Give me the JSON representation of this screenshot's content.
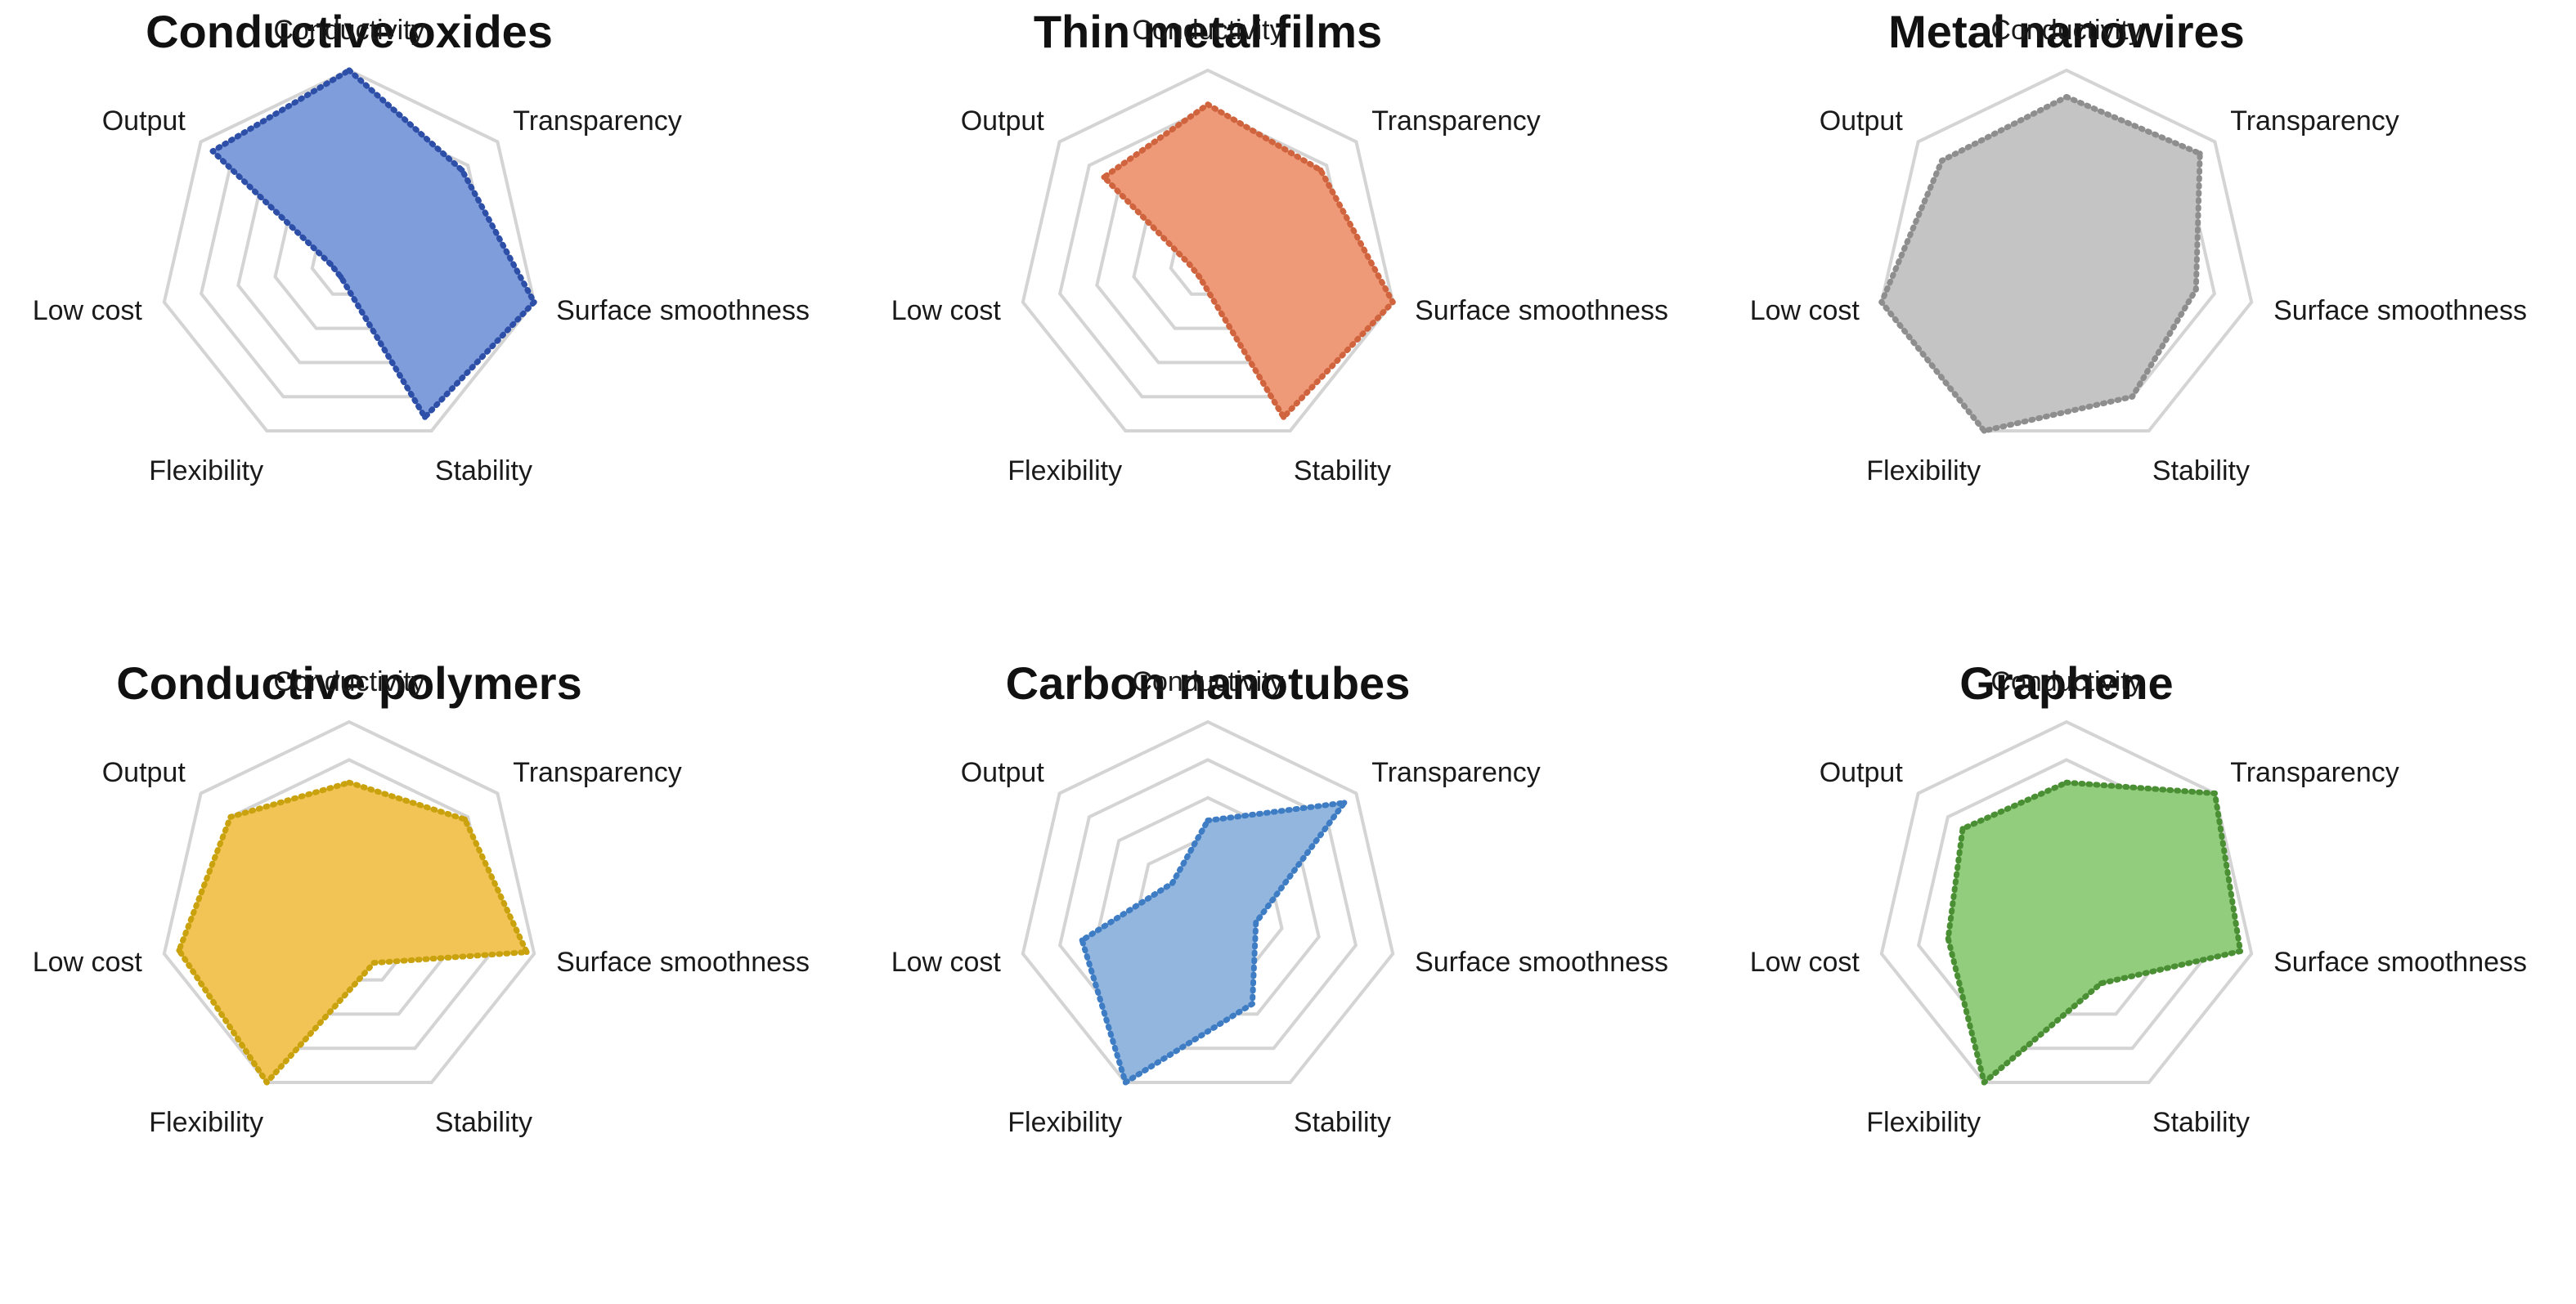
{
  "chart_data": [
    {
      "type": "radar",
      "title": "Conductive oxides",
      "axes": [
        "Conductivity",
        "Transparency",
        "Surface smoothness",
        "Stability",
        "Flexibility",
        "Low cost",
        "Output"
      ],
      "rlim": [
        0,
        5
      ],
      "rings": 5,
      "grid": true,
      "series": [
        {
          "values": [
            5,
            3.8,
            5,
            4.6,
            0.5,
            0.5,
            4.6
          ],
          "color": "#7f9cdb",
          "line_color": "#2e4fa8"
        }
      ]
    },
    {
      "type": "radar",
      "title": "Thin metal films",
      "axes": [
        "Conductivity",
        "Transparency",
        "Surface smoothness",
        "Stability",
        "Flexibility",
        "Low cost",
        "Output"
      ],
      "rlim": [
        0,
        5
      ],
      "rings": 5,
      "grid": true,
      "series": [
        {
          "values": [
            4.1,
            3.8,
            5,
            4.6,
            0.5,
            0.5,
            3.5
          ],
          "color": "#ee9a78",
          "line_color": "#d0643e"
        }
      ]
    },
    {
      "type": "radar",
      "title": "Metal nanowires",
      "axes": [
        "Conductivity",
        "Transparency",
        "Surface smoothness",
        "Stability",
        "Flexibility",
        "Low cost",
        "Output"
      ],
      "rlim": [
        0,
        5
      ],
      "rings": 5,
      "grid": true,
      "series": [
        {
          "values": [
            4.3,
            4.5,
            3.5,
            4.0,
            5,
            5,
            4.2
          ],
          "color": "#c4c4c4",
          "line_color": "#8e8e8e"
        }
      ]
    },
    {
      "type": "radar",
      "title": "Conductive polymers",
      "axes": [
        "Conductivity",
        "Transparency",
        "Surface smoothness",
        "Stability",
        "Flexibility",
        "Low cost",
        "Output"
      ],
      "rlim": [
        0,
        5
      ],
      "rings": 5,
      "grid": true,
      "series": [
        {
          "values": [
            3.4,
            3.9,
            4.8,
            1.5,
            5,
            4.6,
            4.0
          ],
          "color": "#f2c456",
          "line_color": "#c9a20e"
        }
      ]
    },
    {
      "type": "radar",
      "title": "Carbon nanotubes",
      "axes": [
        "Conductivity",
        "Transparency",
        "Surface smoothness",
        "Stability",
        "Flexibility",
        "Low cost",
        "Output"
      ],
      "rlim": [
        0,
        5
      ],
      "rings": 5,
      "grid": true,
      "series": [
        {
          "values": [
            2.4,
            4.6,
            1.3,
            2.7,
            5,
            3.4,
            1.2
          ],
          "color": "#93b6df",
          "line_color": "#3e7cc4"
        }
      ]
    },
    {
      "type": "radar",
      "title": "Graphene",
      "axes": [
        "Conductivity",
        "Transparency",
        "Surface smoothness",
        "Stability",
        "Flexibility",
        "Low cost",
        "Output"
      ],
      "rlim": [
        0,
        5
      ],
      "rings": 5,
      "grid": true,
      "series": [
        {
          "values": [
            3.4,
            5,
            4.7,
            2.1,
            5,
            3.2,
            3.5
          ],
          "color": "#92cc7d",
          "line_color": "#4a8f34"
        }
      ]
    }
  ]
}
